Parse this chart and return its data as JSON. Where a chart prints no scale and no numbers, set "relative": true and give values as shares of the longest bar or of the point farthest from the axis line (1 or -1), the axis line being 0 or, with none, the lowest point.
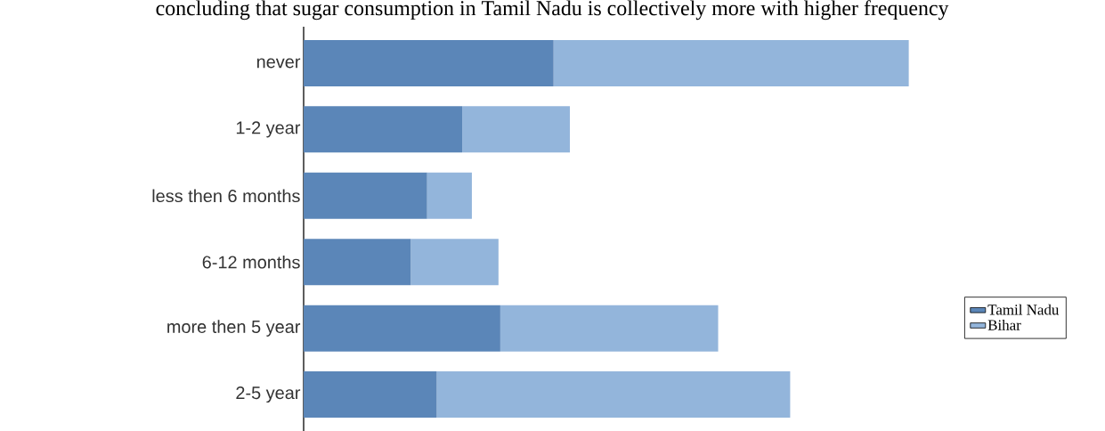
{
  "chart_data": {
    "type": "bar",
    "orientation": "horizontal",
    "stacked": true,
    "relative": true,
    "title": "concluding that sugar consumption in Tamil Nadu is collectively more with higher frequency",
    "categories": [
      "never",
      "1-2 year",
      "less then 6 months",
      "6-12 months",
      "more then 5 year",
      "2-5 year"
    ],
    "series": [
      {
        "name": "Tamil Nadu",
        "color": "#5b86b8",
        "values": [
          0.413,
          0.262,
          0.204,
          0.177,
          0.325,
          0.22
        ]
      },
      {
        "name": "Bihar",
        "color": "#93b5db",
        "values": [
          0.587,
          0.178,
          0.074,
          0.145,
          0.36,
          0.584
        ]
      }
    ],
    "legend": "right"
  }
}
